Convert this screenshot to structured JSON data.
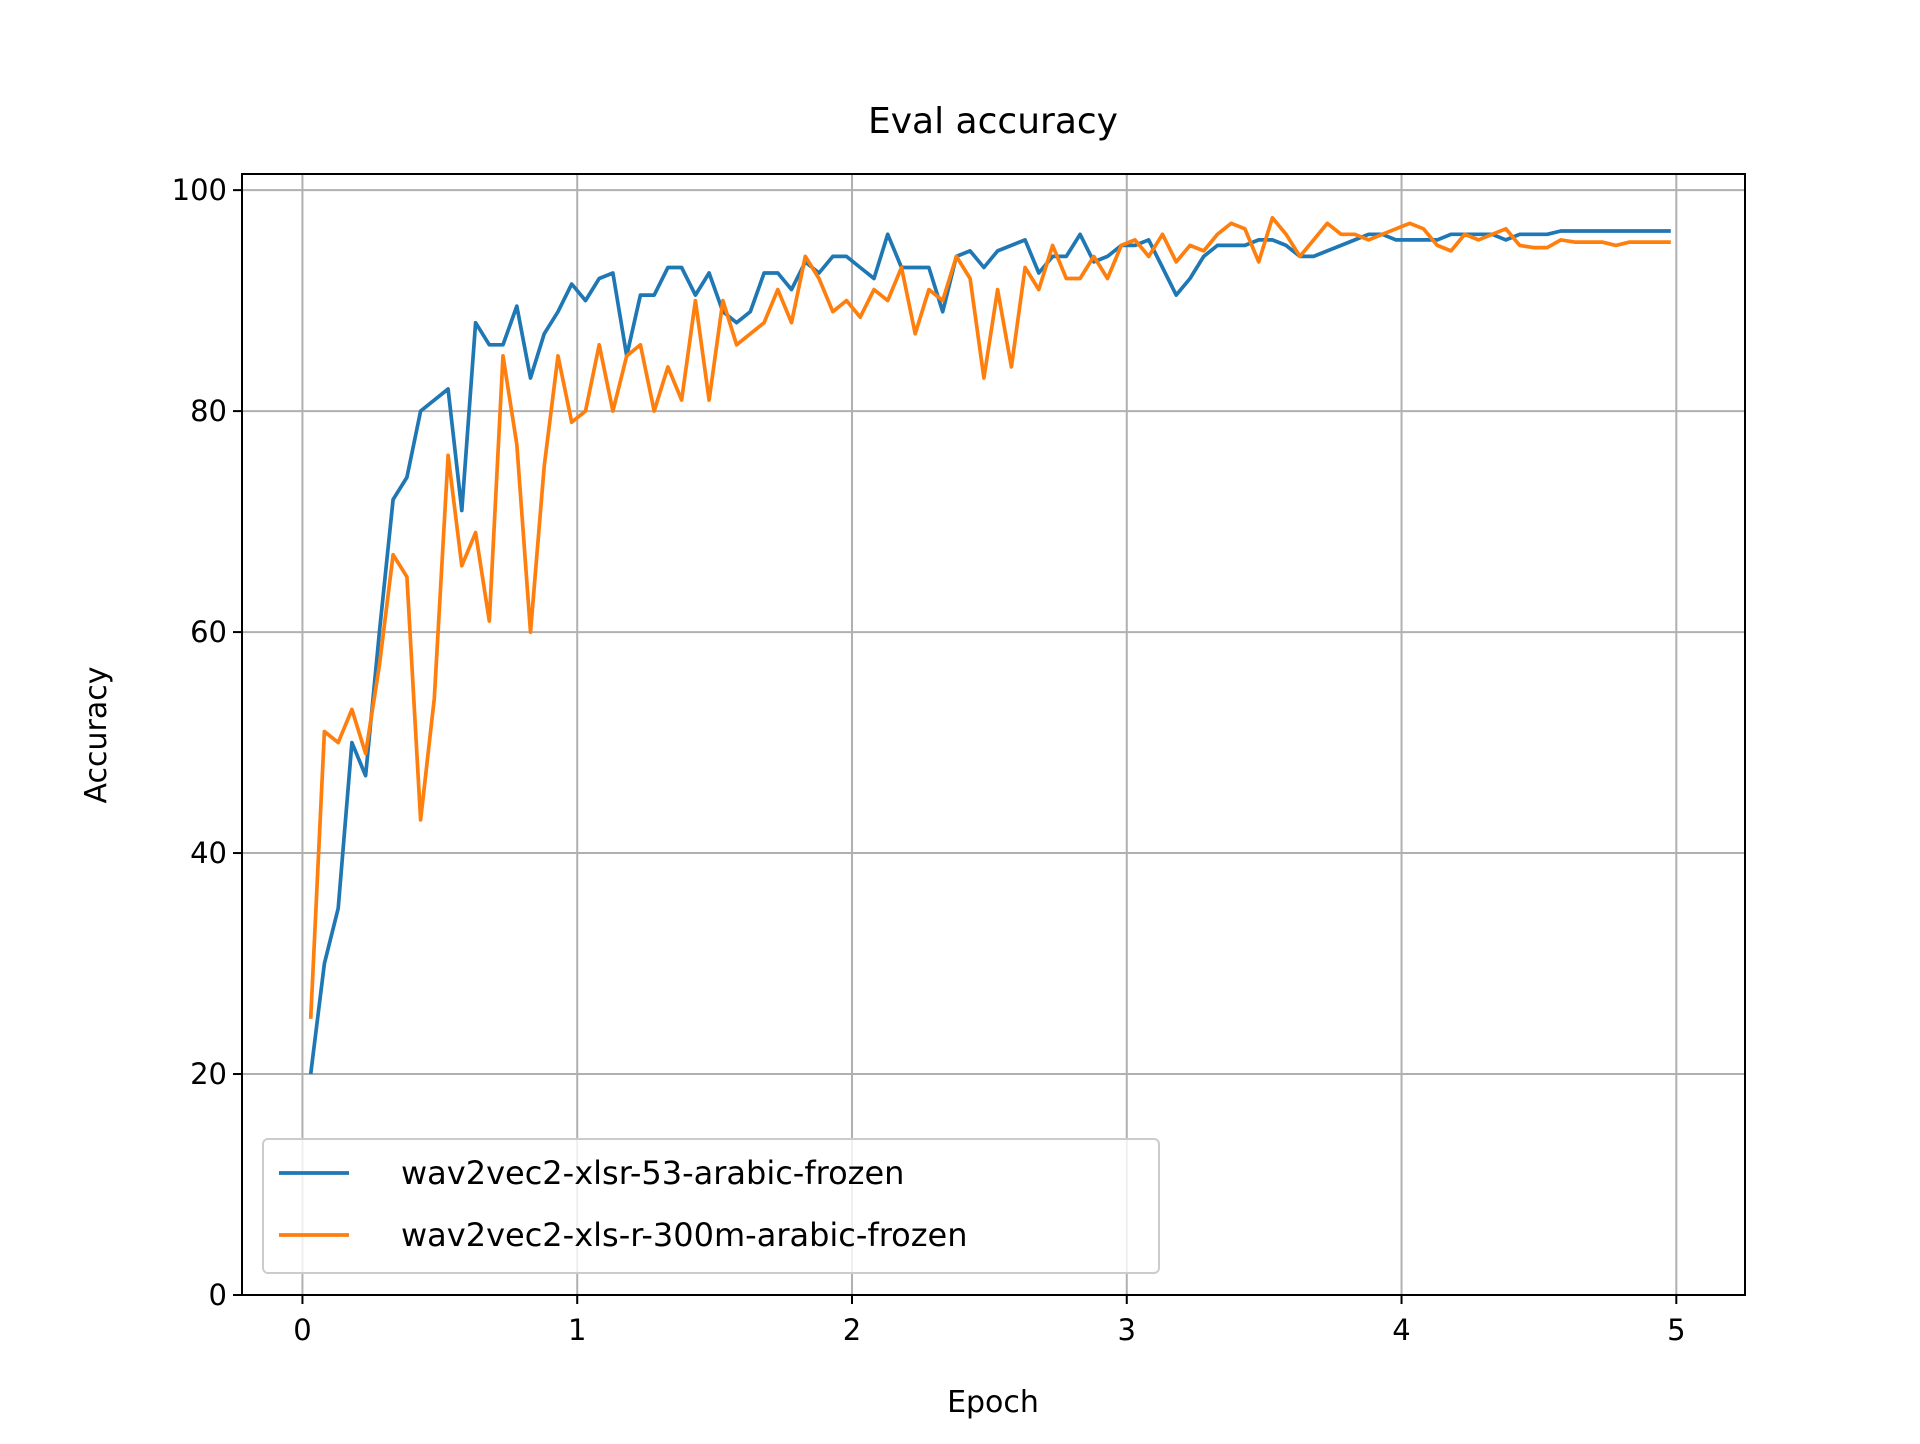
{
  "chart_data": {
    "type": "line",
    "title": "Eval accuracy",
    "x_label": "Epoch",
    "y_label": "Accuracy",
    "x": [
      0.03,
      0.08,
      0.13,
      0.18,
      0.23,
      0.28,
      0.33,
      0.38,
      0.43,
      0.48,
      0.53,
      0.58,
      0.63,
      0.68,
      0.73,
      0.78,
      0.83,
      0.88,
      0.93,
      0.98,
      1.03,
      1.08,
      1.13,
      1.18,
      1.23,
      1.28,
      1.33,
      1.38,
      1.43,
      1.48,
      1.53,
      1.58,
      1.63,
      1.68,
      1.73,
      1.78,
      1.83,
      1.88,
      1.93,
      1.98,
      2.03,
      2.08,
      2.13,
      2.18,
      2.23,
      2.28,
      2.33,
      2.38,
      2.43,
      2.48,
      2.53,
      2.58,
      2.63,
      2.68,
      2.73,
      2.78,
      2.83,
      2.88,
      2.93,
      2.98,
      3.03,
      3.08,
      3.13,
      3.18,
      3.23,
      3.28,
      3.33,
      3.38,
      3.43,
      3.48,
      3.53,
      3.58,
      3.63,
      3.68,
      3.73,
      3.78,
      3.83,
      3.88,
      3.93,
      3.98,
      4.03,
      4.08,
      4.13,
      4.18,
      4.23,
      4.28,
      4.33,
      4.38,
      4.43,
      4.48,
      4.53,
      4.58,
      4.63,
      4.68,
      4.73,
      4.78,
      4.83,
      4.88,
      4.93,
      4.98
    ],
    "series": [
      {
        "name": "wav2vec2-xlsr-53-arabic-frozen",
        "color": "#1f77b4",
        "values": [
          20,
          30,
          35,
          50,
          47,
          60,
          72,
          74,
          80,
          81,
          82,
          71,
          88,
          86,
          86,
          89.5,
          83,
          87,
          89,
          91.5,
          90,
          92,
          92.5,
          85,
          90.5,
          90.5,
          93,
          93,
          90.5,
          92.5,
          89,
          88,
          89,
          92.5,
          92.5,
          91,
          93.5,
          92.5,
          94,
          94,
          93,
          92,
          96,
          93,
          93,
          93,
          89,
          94,
          94.5,
          93,
          94.5,
          95,
          95.5,
          92.5,
          94,
          94,
          96,
          93.5,
          94,
          95,
          95,
          95.5,
          93,
          90.5,
          92,
          94,
          95,
          95,
          95,
          95.5,
          95.5,
          95,
          94,
          94,
          94.5,
          95,
          95.5,
          96,
          96,
          95.5,
          95.5,
          95.5,
          95.5,
          96,
          96,
          96,
          96,
          95.5,
          96,
          96,
          96,
          96.3,
          96.3,
          96.3,
          96.3,
          96.3,
          96.3,
          96.3,
          96.3,
          96.3
        ]
      },
      {
        "name": "wav2vec2-xls-r-300m-arabic-frozen",
        "color": "#ff7f0e",
        "values": [
          25,
          51,
          50,
          53,
          49,
          57,
          67,
          65,
          43,
          54,
          76,
          66,
          69,
          61,
          85,
          77,
          60,
          75,
          85,
          79,
          80,
          86,
          80,
          85,
          86,
          80,
          84,
          81,
          90,
          81,
          90,
          86,
          87,
          88,
          91,
          88,
          94,
          92,
          89,
          90,
          88.5,
          91,
          90,
          93,
          87,
          91,
          90,
          94,
          92,
          83,
          91,
          84,
          93,
          91,
          95,
          92,
          92,
          94,
          92,
          95,
          95.5,
          94,
          96,
          93.5,
          95,
          94.5,
          96,
          97,
          96.5,
          93.5,
          97.5,
          96,
          94,
          95.5,
          97,
          96,
          96,
          95.5,
          96,
          96.5,
          97,
          96.5,
          95,
          94.5,
          96,
          95.5,
          96,
          96.5,
          95,
          94.8,
          94.8,
          95.5,
          95.3,
          95.3,
          95.3,
          95,
          95.3,
          95.3,
          95.3,
          95.3
        ]
      }
    ],
    "xlim": [
      -0.22,
      5.25
    ],
    "ylim": [
      0,
      101.46
    ],
    "xticks": [
      0,
      1,
      2,
      3,
      4,
      5
    ],
    "yticks": [
      0,
      20,
      40,
      60,
      80,
      100
    ],
    "grid": true,
    "legend": "lower left"
  }
}
